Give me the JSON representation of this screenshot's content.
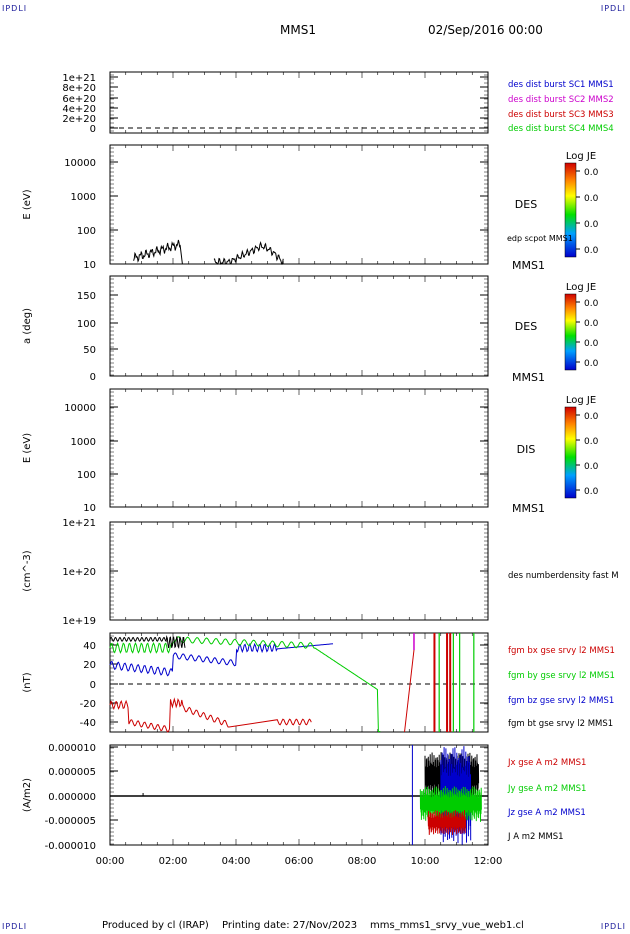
{
  "corners": {
    "tl": "IPDLI",
    "tr": "IPDLI",
    "bl": "IPDLI",
    "br": "IPDLI"
  },
  "header": {
    "title": "MMS1",
    "date": "02/Sep/2016 00:00"
  },
  "footer": {
    "produced": "Produced by cl (IRAP)",
    "printed": "Printing date: 27/Nov/2023",
    "file": "mms_mms1_srvy_vue_web1.cl"
  },
  "x_axis": {
    "ticks": [
      "00:00",
      "02:00",
      "04:00",
      "06:00",
      "08:00",
      "10:00",
      "12:00"
    ]
  },
  "colors": {
    "black": "#000000",
    "blue": "#0000cc",
    "magenta": "#cc00cc",
    "red": "#cc0000",
    "green": "#00cc00"
  },
  "chart_data": [
    {
      "type": "line",
      "ylabel": "",
      "ylim": [
        0,
        1.1e+21
      ],
      "yticks": [
        "1e+21",
        "8e+20",
        "6e+20",
        "4e+20",
        "2e+20",
        "0"
      ],
      "legend": [
        {
          "name": "des dist burst SC1 MMS1",
          "color": "#0000cc"
        },
        {
          "name": "des dist burst SC2 MMS2",
          "color": "#cc00cc"
        },
        {
          "name": "des dist burst SC3 MMS3",
          "color": "#cc0000"
        },
        {
          "name": "des dist burst SC4 MMS4",
          "color": "#00cc00"
        }
      ],
      "dashed_zero": true
    },
    {
      "type": "heatmap",
      "ylabel": "E (eV)",
      "yscale": "log",
      "ylim": [
        10,
        20000
      ],
      "yticks": [
        "10000",
        "1000",
        "100",
        "10"
      ],
      "label": "DES",
      "side": "MMS1",
      "colorbar": {
        "title": "Log JE",
        "ticks": [
          "0.0",
          "0.0",
          "0.0",
          "0.0"
        ]
      },
      "overlay": {
        "name": "edp scpot MMS1",
        "color": "#000000"
      }
    },
    {
      "type": "heatmap",
      "ylabel": "a (deg)",
      "ylim": [
        0,
        180
      ],
      "yticks": [
        "150",
        "100",
        "50",
        "0"
      ],
      "label": "DES",
      "side": "MMS1",
      "colorbar": {
        "title": "Log JE",
        "ticks": [
          "0.0",
          "0.0",
          "0.0",
          "0.0"
        ]
      }
    },
    {
      "type": "heatmap",
      "ylabel": "E (eV)",
      "yscale": "log",
      "ylim": [
        10,
        20000
      ],
      "yticks": [
        "10000",
        "1000",
        "100",
        "10"
      ],
      "label": "DIS",
      "side": "MMS1",
      "colorbar": {
        "title": "Log JE",
        "ticks": [
          "0.0",
          "0.0",
          "0.0",
          "0.0"
        ]
      }
    },
    {
      "type": "line",
      "ylabel": "(cm^-3)",
      "yscale": "log",
      "ylim": [
        1e+19,
        1e+21
      ],
      "yticks": [
        "1e+21",
        "1e+20",
        "1e+19"
      ],
      "legend": [
        {
          "name": "des numberdensity fast M",
          "color": "#000000"
        }
      ]
    },
    {
      "type": "line",
      "ylabel": "(nT)",
      "ylim": [
        -50,
        50
      ],
      "yticks": [
        "40",
        "20",
        "0",
        "-20",
        "-40"
      ],
      "dashed_zero": true,
      "legend": [
        {
          "name": "fgm bx gse srvy l2 MMS1",
          "color": "#cc0000"
        },
        {
          "name": "fgm by gse srvy l2 MMS1",
          "color": "#00cc00"
        },
        {
          "name": "fgm bz gse srvy l2 MMS1",
          "color": "#0000cc"
        },
        {
          "name": "fgm bt gse srvy l2 MMS1",
          "color": "#000000"
        }
      ]
    },
    {
      "type": "line",
      "ylabel": "(A/m2)",
      "ylim": [
        -1e-05,
        1e-05
      ],
      "yticks": [
        "0.000010",
        "0.000005",
        "0.000000",
        "-0.000005",
        "-0.000010"
      ],
      "legend": [
        {
          "name": "Jx gse A m2 MMS1",
          "color": "#cc0000"
        },
        {
          "name": "Jy gse A m2 MMS1",
          "color": "#00cc00"
        },
        {
          "name": "Jz gse A m2 MMS1",
          "color": "#0000cc"
        },
        {
          "name": "J A m2 MMS1",
          "color": "#000000"
        }
      ]
    }
  ]
}
